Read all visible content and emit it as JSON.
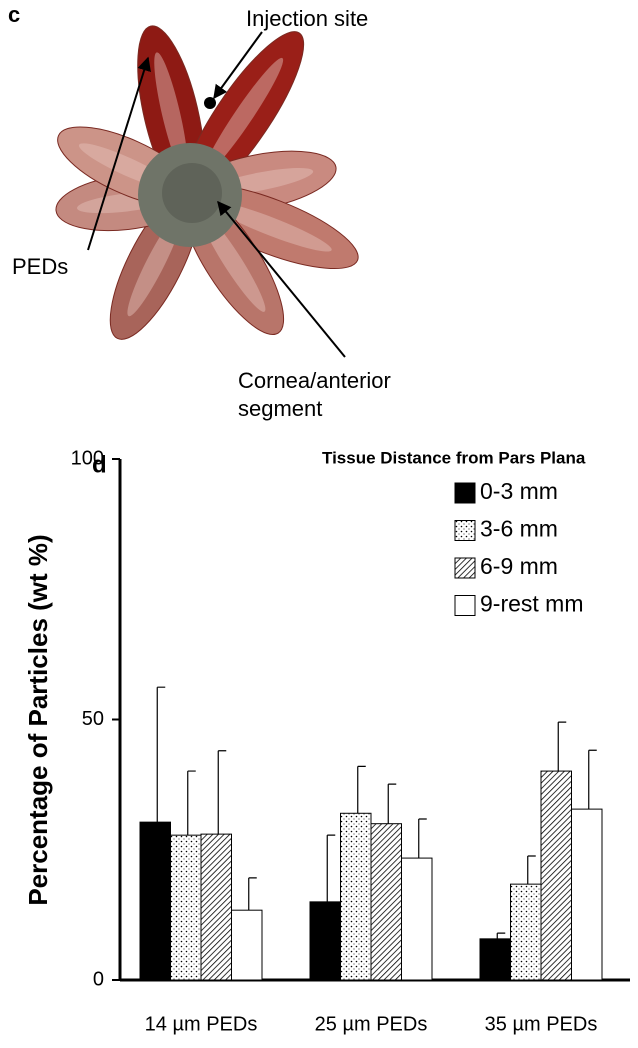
{
  "panel_c": {
    "label": "c",
    "annotations": [
      "Injection site",
      "PEDs",
      "Cornea/anterior",
      "segment"
    ]
  },
  "chart_data": {
    "type": "bar",
    "panel_label": "d",
    "y_label": "Percentage of Particles (wt %)",
    "legend_title": "Tissue Distance from Pars Plana",
    "legend": "upper right",
    "categories": [
      "14 µm PEDs",
      "25 µm PEDs",
      "35 µm PEDs"
    ],
    "series": [
      {
        "name": "0-3 mm",
        "color": "#000000",
        "fill": "solid",
        "values": [
          30.3,
          15.0,
          7.9
        ],
        "errors": [
          25.9,
          12.8,
          1.1
        ]
      },
      {
        "name": "3-6 mm",
        "color": "#000000",
        "fill": "dots",
        "values": [
          27.8,
          32.0,
          18.4
        ],
        "errors": [
          12.3,
          9.0,
          5.4
        ]
      },
      {
        "name": "6-9 mm",
        "color": "#000000",
        "fill": "hatch",
        "values": [
          28.0,
          30.0,
          40.1
        ],
        "errors": [
          16.0,
          7.6,
          9.4
        ]
      },
      {
        "name": "9-rest mm",
        "color": "#000000",
        "fill": "none",
        "values": [
          13.4,
          23.4,
          32.8
        ],
        "errors": [
          6.2,
          7.5,
          11.3
        ]
      }
    ],
    "ylim": [
      0,
      100
    ],
    "yticks": [
      0,
      50,
      100
    ],
    "grid": false
  }
}
